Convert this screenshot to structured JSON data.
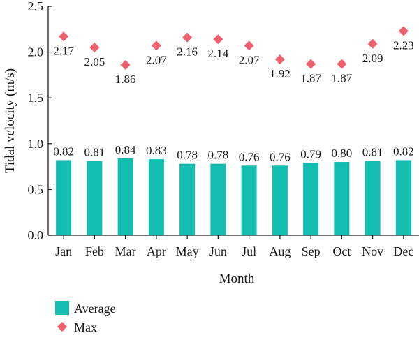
{
  "chart_data": {
    "type": "bar",
    "categories": [
      "Jan",
      "Feb",
      "Mar",
      "Apr",
      "May",
      "Jun",
      "Jul",
      "Aug",
      "Sep",
      "Oct",
      "Nov",
      "Dec"
    ],
    "series": [
      {
        "name": "Average",
        "kind": "bar",
        "color": "#13bdb0",
        "values": [
          0.82,
          0.81,
          0.84,
          0.83,
          0.78,
          0.78,
          0.76,
          0.76,
          0.79,
          0.8,
          0.81,
          0.82
        ],
        "labels": [
          "0.82",
          "0.81",
          "0.84",
          "0.83",
          "0.78",
          "0.78",
          "0.76",
          "0.76",
          "0.79",
          "0.80",
          "0.81",
          "0.82"
        ]
      },
      {
        "name": "Max",
        "kind": "scatter",
        "marker": "diamond",
        "color": "#ef5f6e",
        "values": [
          2.17,
          2.05,
          1.86,
          2.07,
          2.16,
          2.14,
          2.07,
          1.92,
          1.87,
          1.87,
          2.09,
          2.23
        ],
        "labels": [
          "2.17",
          "2.05",
          "1.86",
          "2.07",
          "2.16",
          "2.14",
          "2.07",
          "1.92",
          "1.87",
          "1.87",
          "2.09",
          "2.23"
        ]
      }
    ],
    "xlabel": "Month",
    "ylabel": "Tidal velocity (m/s)",
    "ylim": [
      0,
      2.5
    ],
    "yticks": [
      "0.0",
      "0.5",
      "1.0",
      "1.5",
      "2.0",
      "2.5"
    ],
    "grid": false,
    "legend_position": "bottom-left"
  }
}
